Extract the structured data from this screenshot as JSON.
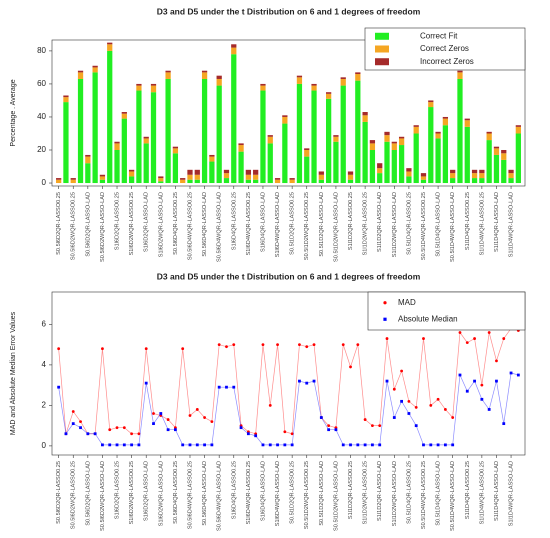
{
  "chart_data": [
    {
      "type": "bar",
      "stacked": true,
      "title": "D3 and D5 under the t Distribution on 6 and 1 degrees of freedom",
      "ylabel": "Percentage . Average",
      "categories": [
        "S0.5l6D2QR-LASSO0.25",
        null,
        "S0.5l6D2WQR-LASSO0.25",
        null,
        "S0.5l6D2QR-LASSO-LAD",
        null,
        "S0.5l6D2WQR-LASSO-LAD",
        null,
        "S1l6D2QR-LASSO0.25",
        null,
        "S1l6D2WQR-LASSO0.25",
        null,
        "S1l6D2QR-LASSO-LAD",
        null,
        "S1l6D2WQR-LASSO-LAD",
        null,
        "S0.5l6D4QR-LASSO0.25",
        null,
        "S0.5l6D4WQR-LASSO0.25",
        null,
        "S0.5l6D4QR-LASSO-LAD",
        null,
        "S0.5l6D4WQR-LASSO-LAD",
        null,
        "S1l6D4QR-LASSO0.25",
        null,
        "S1l6D4WQR-LASSO0.25",
        null,
        "S1l6D4QR-LASSO-LAD",
        null,
        "S1l6D4WQR-LASSO-LAD",
        null,
        "S0.5l1D2QR-LASSO0.25",
        null,
        "S0.5l1D2WQR-LASSO0.25",
        null,
        "S0.5l1D2QR-LASSO-LAD",
        null,
        "S0.5l1D2WQR-LASSO-LAD",
        null,
        "S1l1D2QR-LASSO0.25",
        null,
        "S1l1D2WQR-LASSO0.25",
        null,
        "S1l1D2QR-LASSO-LAD",
        null,
        "S1l1D2WQR-LASSO-LAD",
        null,
        "S0.5l1D4QR-LASSO0.25",
        null,
        "S0.5l1D4WQR-LASSO0.25",
        null,
        "S0.5l1D4QR-LASSO-LAD",
        null,
        "S0.5l1D4WQR-LASSO-LAD",
        null,
        "S1l1D4QR-LASSO0.25",
        null,
        "S1l1D4WQR-LASSO0.25",
        null,
        "S1l1D4QR-LASSO-LAD",
        null,
        "S1l1D4WQR-LASSO-LAD",
        null
      ],
      "series": [
        {
          "name": "Correct Fit",
          "color": "#22ee22",
          "values": [
            0,
            49,
            0,
            63,
            12,
            67,
            2,
            80,
            20,
            39,
            4,
            56,
            24,
            55,
            1,
            63,
            18,
            0,
            2,
            2,
            63,
            13,
            59,
            3,
            78,
            19,
            2,
            2,
            56,
            24,
            0,
            36,
            0,
            60,
            16,
            56,
            2,
            51,
            25,
            59,
            2,
            62,
            37,
            20,
            6,
            25,
            20,
            23,
            4,
            30,
            2,
            46,
            27,
            35,
            3,
            63,
            34,
            3,
            3,
            26,
            17,
            14,
            3,
            30
          ]
        },
        {
          "name": "Correct Zeros",
          "color": "#f5a623",
          "values": [
            2,
            3,
            2,
            4,
            4,
            3,
            2,
            4,
            4,
            3,
            3,
            3,
            3,
            4,
            2,
            4,
            3,
            2,
            3,
            3,
            4,
            3,
            4,
            3,
            4,
            4,
            3,
            3,
            3,
            4,
            2,
            4,
            2,
            4,
            4,
            3,
            3,
            3,
            3,
            4,
            3,
            4,
            4,
            4,
            3,
            4,
            4,
            4,
            3,
            4,
            2,
            3,
            3,
            4,
            3,
            4,
            4,
            3,
            3,
            4,
            4,
            4,
            3,
            4
          ]
        },
        {
          "name": "Incorrect Zeros",
          "color": "#a52a2a",
          "values": [
            1,
            1,
            1,
            1,
            1,
            1,
            1,
            1,
            1,
            1,
            1,
            1,
            1,
            1,
            1,
            1,
            1,
            1,
            3,
            3,
            1,
            1,
            2,
            2,
            2,
            1,
            3,
            3,
            1,
            1,
            1,
            1,
            1,
            1,
            1,
            1,
            2,
            1,
            1,
            1,
            2,
            1,
            2,
            2,
            3,
            2,
            1,
            1,
            2,
            1,
            2,
            1,
            1,
            1,
            2,
            1,
            1,
            2,
            2,
            1,
            1,
            2,
            2,
            1
          ]
        }
      ],
      "ylim": [
        -1.8,
        86.6
      ],
      "yticks": [
        0,
        20,
        40,
        60,
        80
      ],
      "legend": "top-right"
    },
    {
      "type": "line",
      "title": "D3 and D5 under the t Distribution on 6 and 1 degrees of freedom",
      "ylabel": "MAD and Absolute Median Error Values",
      "categories": [
        "S0.5l6D2QR-LASSO0.25",
        null,
        "S0.5l6D2WQR-LASSO0.25",
        null,
        "S0.5l6D2QR-LASSO-LAD",
        null,
        "S0.5l6D2WQR-LASSO-LAD",
        null,
        "S1l6D2QR-LASSO0.25",
        null,
        "S1l6D2WQR-LASSO0.25",
        null,
        "S1l6D2QR-LASSO-LAD",
        null,
        "S1l6D2WQR-LASSO-LAD",
        null,
        "S0.5l6D4QR-LASSO0.25",
        null,
        "S0.5l6D4WQR-LASSO0.25",
        null,
        "S0.5l6D4QR-LASSO-LAD",
        null,
        "S0.5l6D4WQR-LASSO-LAD",
        null,
        "S1l6D4QR-LASSO0.25",
        null,
        "S1l6D4WQR-LASSO0.25",
        null,
        "S1l6D4QR-LASSO-LAD",
        null,
        "S1l6D4WQR-LASSO-LAD",
        null,
        "S0.5l1D2QR-LASSO0.25",
        null,
        "S0.5l1D2WQR-LASSO0.25",
        null,
        "S0.5l1D2QR-LASSO-LAD",
        null,
        "S0.5l1D2WQR-LASSO-LAD",
        null,
        "S1l1D2QR-LASSO0.25",
        null,
        "S1l1D2WQR-LASSO0.25",
        null,
        "S1l1D2QR-LASSO-LAD",
        null,
        "S1l1D2WQR-LASSO-LAD",
        null,
        "S0.5l1D4QR-LASSO0.25",
        null,
        "S0.5l1D4WQR-LASSO0.25",
        null,
        "S0.5l1D4QR-LASSO-LAD",
        null,
        "S0.5l1D4WQR-LASSO-LAD",
        null,
        "S1l1D4QR-LASSO0.25",
        null,
        "S1l1D4WQR-LASSO0.25",
        null,
        "S1l1D4QR-LASSO-LAD",
        null,
        "S1l1D4WQR-LASSO-LAD",
        null
      ],
      "series": [
        {
          "name": "MAD",
          "color": "#ff0000",
          "values": [
            4.8,
            0.6,
            1.7,
            1.2,
            0.6,
            0.6,
            4.8,
            0.8,
            0.9,
            0.9,
            0.6,
            0.6,
            4.8,
            1.6,
            1.5,
            1.3,
            0.9,
            4.8,
            1.5,
            1.8,
            1.4,
            1.2,
            5.0,
            4.9,
            5.0,
            1.0,
            0.7,
            0.6,
            5.0,
            2.0,
            5.0,
            0.7,
            0.6,
            5.0,
            4.9,
            5.0,
            1.4,
            1.0,
            0.9,
            5.0,
            3.9,
            5.0,
            1.3,
            1.0,
            1.0,
            5.3,
            2.8,
            3.7,
            2.2,
            1.9,
            5.3,
            2.0,
            2.3,
            1.8,
            1.4,
            5.6,
            5.1,
            5.3,
            3.0,
            5.6,
            4.2,
            5.3,
            5.8,
            5.7
          ]
        },
        {
          "name": "Absolute Median",
          "color": "#0000ff",
          "values": [
            2.9,
            0.6,
            1.1,
            0.9,
            0.6,
            0.6,
            0.05,
            0.05,
            0.05,
            0.05,
            0.05,
            0.05,
            3.1,
            1.1,
            1.6,
            0.8,
            0.8,
            0.05,
            0.05,
            0.05,
            0.05,
            0.05,
            2.9,
            2.9,
            2.9,
            0.9,
            0.6,
            0.5,
            0.05,
            0.05,
            0.05,
            0.05,
            0.05,
            3.2,
            3.1,
            3.2,
            1.4,
            0.8,
            0.8,
            0.05,
            0.05,
            0.05,
            0.05,
            0.05,
            0.05,
            3.2,
            1.4,
            2.2,
            1.6,
            1.0,
            0.05,
            0.05,
            0.05,
            0.05,
            0.05,
            3.5,
            2.7,
            3.2,
            2.3,
            1.8,
            3.2,
            1.1,
            3.6,
            3.5
          ]
        }
      ],
      "ylim": [
        -0.45,
        7.6
      ],
      "yticks": [
        0,
        2,
        4,
        6
      ],
      "legend": "top-right"
    }
  ]
}
